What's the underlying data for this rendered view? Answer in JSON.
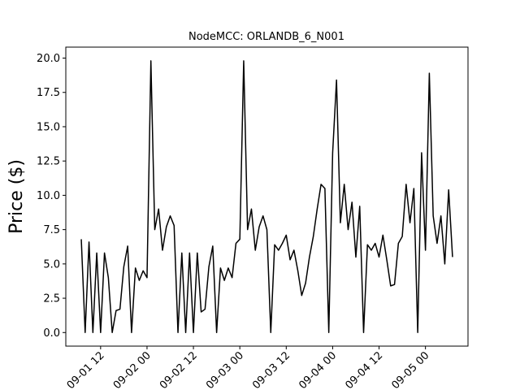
{
  "chart_data": {
    "type": "line",
    "title": "NodeMCC: ORLANDB_6_N001",
    "y_label": "Price ($)",
    "x": [
      "09-01 07",
      "09-01 08",
      "09-01 09",
      "09-01 10",
      "09-01 11",
      "09-01 12",
      "09-01 13",
      "09-01 14",
      "09-01 15",
      "09-01 16",
      "09-01 17",
      "09-01 18",
      "09-01 19",
      "09-01 20",
      "09-01 21",
      "09-01 22",
      "09-01 23",
      "09-02 00",
      "09-02 01",
      "09-02 02",
      "09-02 03",
      "09-02 04",
      "09-02 05",
      "09-02 06",
      "09-02 07",
      "09-02 08",
      "09-02 09",
      "09-02 10",
      "09-02 11",
      "09-02 12",
      "09-02 13",
      "09-02 14",
      "09-02 15",
      "09-02 16",
      "09-02 17",
      "09-02 18",
      "09-02 19",
      "09-02 20",
      "09-02 21",
      "09-02 22",
      "09-02 23",
      "09-03 00",
      "09-03 01",
      "09-03 02",
      "09-03 03",
      "09-03 04",
      "09-03 05",
      "09-03 06",
      "09-03 07",
      "09-03 08",
      "09-03 09",
      "09-03 10",
      "09-03 11",
      "09-03 12",
      "09-03 13",
      "09-03 14",
      "09-03 15",
      "09-03 16",
      "09-03 17",
      "09-03 18",
      "09-03 19",
      "09-03 20",
      "09-03 21",
      "09-03 22",
      "09-03 23",
      "09-04 00",
      "09-04 01",
      "09-04 02",
      "09-04 03",
      "09-04 04",
      "09-04 05",
      "09-04 06",
      "09-04 07",
      "09-04 08",
      "09-04 09",
      "09-04 10",
      "09-04 11",
      "09-04 12",
      "09-04 13",
      "09-04 14",
      "09-04 15",
      "09-04 16",
      "09-04 17",
      "09-04 18",
      "09-04 19",
      "09-04 20",
      "09-04 21",
      "09-04 22",
      "09-04 23",
      "09-05 00",
      "09-05 01",
      "09-05 02",
      "09-05 03",
      "09-05 04",
      "09-05 05",
      "09-05 06",
      "09-05 07"
    ],
    "series": [
      {
        "name": "ORLANDB_6_N001",
        "color": "#000000",
        "values": [
          6.8,
          0,
          6.6,
          0,
          5.8,
          0,
          5.8,
          4.0,
          0,
          1.6,
          1.7,
          4.8,
          6.3,
          0,
          4.7,
          3.8,
          4.5,
          4.0,
          19.8,
          7.5,
          9.0,
          6.0,
          7.7,
          8.5,
          7.8,
          0,
          5.8,
          0,
          5.8,
          0,
          5.8,
          1.5,
          1.7,
          4.8,
          6.3,
          0,
          4.7,
          3.8,
          4.7,
          4.0,
          6.5,
          6.8,
          19.8,
          7.5,
          9.0,
          6.0,
          7.7,
          8.5,
          7.5,
          0,
          6.4,
          6.0,
          6.5,
          7.1,
          5.3,
          6.0,
          4.5,
          2.7,
          3.6,
          5.5,
          7.0,
          9.0,
          10.8,
          10.5,
          0,
          13.1,
          18.4,
          8.0,
          10.8,
          7.5,
          9.5,
          5.5,
          9.2,
          0,
          6.4,
          6.0,
          6.5,
          5.5,
          7.1,
          5.3,
          3.4,
          3.5,
          6.5,
          7.0,
          10.8,
          8.0,
          10.5,
          0,
          13.1,
          6.0,
          18.9,
          8.5,
          6.5,
          8.5,
          5.0,
          10.4,
          5.5
        ]
      }
    ],
    "xlim": [
      "09-01 03",
      "09-05 11"
    ],
    "xticks": [
      "09-01 12",
      "09-02 00",
      "09-02 12",
      "09-03 00",
      "09-03 12",
      "09-04 00",
      "09-04 12",
      "09-05 00"
    ],
    "ylim": [
      -0.99,
      20.8
    ],
    "yticks": [
      {
        "value": 0,
        "label": "0.0"
      },
      2.5,
      {
        "value": 5,
        "label": "5.0"
      },
      7.5,
      {
        "value": 10,
        "label": "10.0"
      },
      12.5,
      {
        "value": 15,
        "label": "15.0"
      },
      17.5,
      {
        "value": 20,
        "label": "20.0"
      }
    ]
  }
}
